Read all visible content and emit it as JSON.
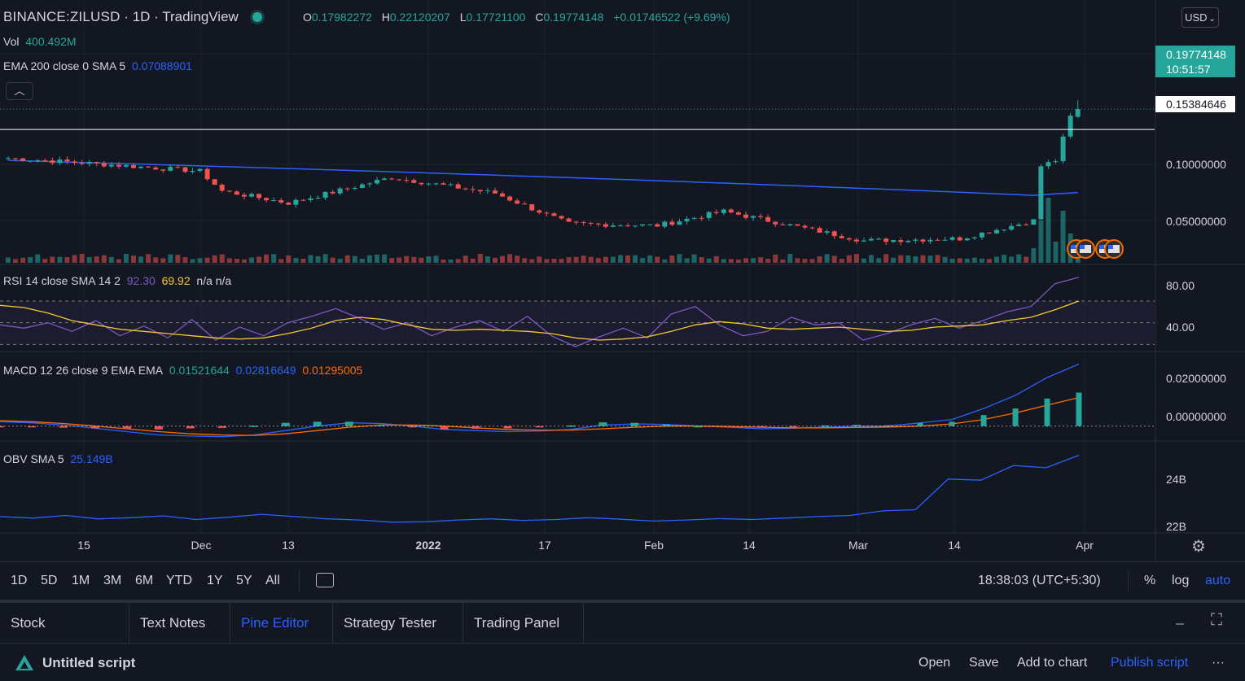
{
  "header": {
    "symbol": "BINANCE:ZILUSD",
    "sep1": "·",
    "interval": "1D",
    "sep2": "·",
    "source": "TradingView",
    "o_key": "O",
    "o": "0.17982272",
    "h_key": "H",
    "h": "0.22120207",
    "l_key": "L",
    "l": "0.17721100",
    "c_key": "C",
    "c": "0.19774148",
    "change": "+0.01746522 (+9.69%)"
  },
  "legends": {
    "vol_label": "Vol",
    "vol_value": "400.492M",
    "ema_label": "EMA 200 close 0 SMA 5",
    "ema_value": "0.07088901",
    "rsi_label": "RSI 14 close SMA 14 2",
    "rsi_value": "92.30",
    "rsi_sma": "69.92",
    "rsi_na": "n/a n/a",
    "macd_label": "MACD 12 26 close 9 EMA EMA",
    "macd_hist": "0.01521644",
    "macd_line": "0.02816649",
    "macd_signal": "0.01295005",
    "obv_label": "OBV SMA 5",
    "obv_value": "25.149B"
  },
  "currency": "USD",
  "price_labels": {
    "current": "0.19774148",
    "countdown": "10:51:57",
    "hline": "0.15384646"
  },
  "price_axis": [
    "0.10000000",
    "0.05000000"
  ],
  "rsi_axis": [
    "80.00",
    "40.00"
  ],
  "macd_axis": [
    "0.02000000",
    "0.00000000"
  ],
  "obv_axis": [
    "24B",
    "22B"
  ],
  "time_axis": [
    {
      "label": "15",
      "bold": false
    },
    {
      "label": "Dec",
      "bold": false
    },
    {
      "label": "13",
      "bold": false
    },
    {
      "label": "2022",
      "bold": true
    },
    {
      "label": "17",
      "bold": false
    },
    {
      "label": "Feb",
      "bold": false
    },
    {
      "label": "14",
      "bold": false
    },
    {
      "label": "Mar",
      "bold": false
    },
    {
      "label": "14",
      "bold": false
    },
    {
      "label": "Apr",
      "bold": false
    }
  ],
  "range_buttons": [
    "1D",
    "5D",
    "1M",
    "3M",
    "6M",
    "YTD",
    "1Y",
    "5Y",
    "All"
  ],
  "clock": "18:38:03 (UTC+5:30)",
  "scale_options": {
    "percent": "%",
    "log": "log",
    "auto": "auto"
  },
  "panel_tabs": [
    "Stock Screener",
    "Text Notes",
    "Pine Editor",
    "Strategy Tester",
    "Trading Panel"
  ],
  "active_tab": "Pine Editor",
  "script": {
    "title": "Untitled script",
    "actions": [
      "Open",
      "Save",
      "Add to chart",
      "Publish script"
    ],
    "more": "···"
  },
  "colors": {
    "background": "#131722",
    "up": "#26a69a",
    "down": "#ef5350",
    "ema": "#2962ff",
    "rsi": "#7e57c2",
    "rsi_sma": "#f7c631",
    "macd_line": "#2962ff",
    "macd_signal": "#ff6d00",
    "obv": "#2962ff",
    "accent": "#2962ff"
  },
  "chart_data": [
    {
      "type": "candlestick",
      "title": "BINANCE:ZILUSD · 1D · TradingView",
      "yscale": "log",
      "x_period": [
        "2021-11-05",
        "2022-03-30"
      ],
      "key_points": [
        {
          "date": "2021-11-05",
          "close": 0.108
        },
        {
          "date": "2021-11-15",
          "close": 0.102
        },
        {
          "date": "2021-12-01",
          "close": 0.092
        },
        {
          "date": "2021-12-04",
          "close": 0.072
        },
        {
          "date": "2021-12-13",
          "close": 0.062
        },
        {
          "date": "2021-12-27",
          "close": 0.085
        },
        {
          "date": "2022-01-10",
          "close": 0.07
        },
        {
          "date": "2022-01-20",
          "close": 0.048
        },
        {
          "date": "2022-02-01",
          "close": 0.047
        },
        {
          "date": "2022-02-10",
          "close": 0.056
        },
        {
          "date": "2022-03-01",
          "close": 0.039
        },
        {
          "date": "2022-03-14",
          "close": 0.04
        },
        {
          "date": "2022-03-24",
          "close": 0.05
        },
        {
          "date": "2022-03-25",
          "close": 0.098
        },
        {
          "date": "2022-03-27",
          "close": 0.105
        },
        {
          "date": "2022-03-29",
          "close": 0.18
        },
        {
          "date": "2022-03-30",
          "open": 0.17982272,
          "high": 0.22120207,
          "low": 0.177211,
          "close": 0.19774148
        }
      ],
      "overlays": [
        {
          "name": "EMA 200",
          "value_last": 0.07088901
        },
        {
          "name": "Horizontal line",
          "value": 0.15384646
        }
      ],
      "volume_last": "400.492M"
    },
    {
      "type": "line",
      "title": "RSI 14 close SMA 14 2",
      "ylim": [
        25,
        100
      ],
      "bands": [
        70,
        50,
        30
      ],
      "series": [
        {
          "name": "RSI",
          "values": [
            48,
            45,
            50,
            42,
            52,
            38,
            47,
            36,
            53,
            34,
            46,
            38,
            50,
            56,
            63,
            54,
            44,
            50,
            38,
            46,
            52,
            42,
            56,
            38,
            28,
            37,
            45,
            36,
            58,
            65,
            48,
            38,
            42,
            55,
            48,
            50,
            34,
            40,
            48,
            54,
            45,
            52,
            60,
            65,
            86,
            92
          ]
        },
        {
          "name": "SMA",
          "values": [
            66,
            64,
            59,
            52,
            48,
            44,
            42,
            40,
            38,
            36,
            35,
            36,
            40,
            45,
            52,
            55,
            53,
            48,
            44,
            43,
            44,
            43,
            42,
            40,
            36,
            34,
            35,
            37,
            42,
            48,
            51,
            49,
            45,
            44,
            45,
            46,
            44,
            42,
            43,
            46,
            47,
            48,
            52,
            55,
            62,
            70
          ]
        }
      ]
    },
    {
      "type": "line",
      "title": "MACD 12 26 close 9 EMA EMA",
      "ylim": [
        -0.006,
        0.032
      ],
      "series": [
        {
          "name": "MACD",
          "values": [
            0.002,
            0.0015,
            0.0005,
            -0.001,
            -0.0025,
            -0.004,
            -0.0045,
            -0.0048,
            -0.004,
            -0.002,
            0.0,
            0.0015,
            0.0012,
            0.0,
            -0.0015,
            -0.002,
            -0.0025,
            -0.0022,
            -0.0015,
            0.0005,
            0.001,
            0.0008,
            0.0,
            -0.0005,
            -0.0012,
            -0.001,
            -0.0005,
            0.0,
            0.0,
            0.0015,
            0.003,
            0.008,
            0.014,
            0.022,
            0.02816649
          ]
        },
        {
          "name": "Signal",
          "values": [
            0.0025,
            0.002,
            0.0012,
            0.0,
            -0.0012,
            -0.0025,
            -0.0035,
            -0.004,
            -0.0042,
            -0.0035,
            -0.002,
            -0.0005,
            0.0005,
            0.0005,
            0.0,
            -0.0008,
            -0.0015,
            -0.0018,
            -0.0018,
            -0.0012,
            -0.0005,
            0.0,
            0.0,
            -0.0002,
            -0.0005,
            -0.0008,
            -0.0008,
            -0.0006,
            -0.0004,
            0.0,
            0.001,
            0.003,
            0.006,
            0.0095,
            0.01295005
          ]
        },
        {
          "name": "Histogram",
          "values": [
            -0.0005,
            -0.0005,
            -0.0007,
            -0.001,
            -0.0013,
            -0.0015,
            -0.001,
            -0.0008,
            0.0002,
            0.0015,
            0.002,
            0.002,
            0.0007,
            -0.0005,
            -0.0015,
            -0.0012,
            -0.001,
            -0.0004,
            0.0003,
            0.0017,
            0.0015,
            0.0008,
            0.0,
            -0.0003,
            -0.0007,
            -0.0002,
            0.0003,
            0.0006,
            0.0004,
            0.0015,
            0.002,
            0.005,
            0.008,
            0.0125,
            0.01521644
          ]
        }
      ]
    },
    {
      "type": "line",
      "title": "OBV SMA 5",
      "ylim": [
        21.8,
        25.6
      ],
      "units": "B",
      "series": [
        {
          "name": "OBV",
          "values": [
            22.45,
            22.38,
            22.5,
            22.35,
            22.4,
            22.48,
            22.32,
            22.42,
            22.55,
            22.45,
            22.35,
            22.3,
            22.2,
            22.22,
            22.3,
            22.35,
            22.28,
            22.32,
            22.4,
            22.33,
            22.25,
            22.3,
            22.36,
            22.32,
            22.38,
            22.45,
            22.5,
            22.7,
            22.75,
            24.1,
            24.05,
            24.7,
            24.6,
            25.15
          ]
        }
      ]
    }
  ]
}
